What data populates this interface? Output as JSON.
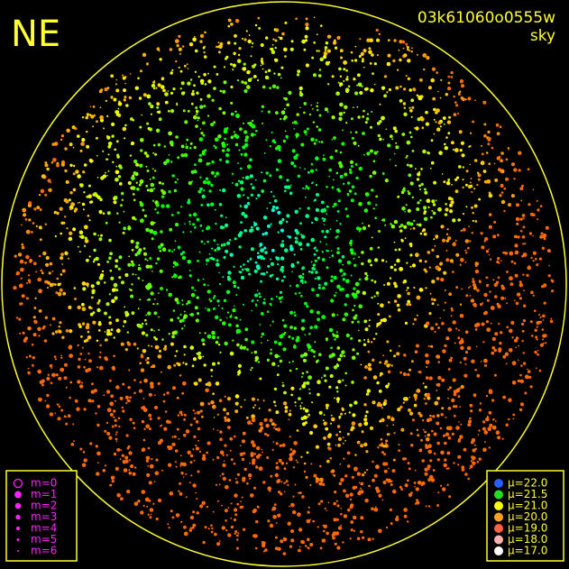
{
  "corner_label": "NE",
  "frame_id": "03k61060o0555w",
  "frame_type": "sky",
  "frame_color": "#ffff33",
  "magnitude_legend": {
    "color": "#ff22ff",
    "items": [
      "m=0",
      "m=1",
      "m=2",
      "m=3",
      "m=4",
      "m=5",
      "m=6"
    ]
  },
  "brightness_legend": {
    "items": [
      {
        "label": "μ=22.0",
        "color": "#2a5cff"
      },
      {
        "label": "μ=21.5",
        "color": "#22dd22"
      },
      {
        "label": "μ=21.0",
        "color": "#ffff00"
      },
      {
        "label": "μ=20.0",
        "color": "#ffa020"
      },
      {
        "label": "μ=19.0",
        "color": "#ff6040"
      },
      {
        "label": "μ=18.0",
        "color": "#ffb0b0"
      },
      {
        "label": "μ=17.0",
        "color": "#ffffff"
      }
    ]
  }
}
